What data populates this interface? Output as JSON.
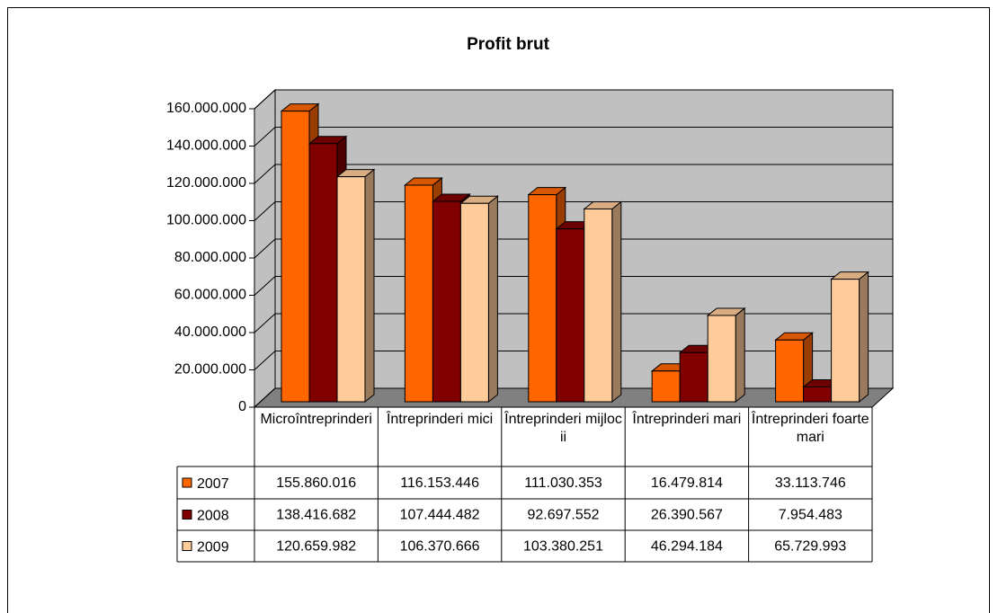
{
  "chart_data": {
    "type": "bar3d",
    "title": "Profit brut",
    "categories": [
      "Microîntreprinderi",
      "Întreprinderi mici",
      "Întreprinderi mijlocii",
      "Întreprinderi mari",
      "Întreprinderi foarte mari"
    ],
    "series": [
      {
        "name": "2007",
        "color": "#ff6600",
        "values": [
          155860016,
          116153446,
          111030353,
          16479814,
          33113746
        ],
        "value_labels": [
          "155.860.016",
          "116.153.446",
          "111.030.353",
          "16.479.814",
          "33.113.746"
        ]
      },
      {
        "name": "2008",
        "color": "#800000",
        "values": [
          138416682,
          107444482,
          92697552,
          26390567,
          7954483
        ],
        "value_labels": [
          "138.416.682",
          "107.444.482",
          "92.697.552",
          "26.390.567",
          "7.954.483"
        ]
      },
      {
        "name": "2009",
        "color": "#ffcc99",
        "values": [
          120659982,
          106370666,
          103380251,
          46294184,
          65729993
        ],
        "value_labels": [
          "120.659.982",
          "106.370.666",
          "103.380.251",
          "46.294.184",
          "65.729.993"
        ]
      }
    ],
    "ylim": [
      0,
      160000000
    ],
    "yticks": [
      0,
      {
        "value": 20000000,
        "label": "20.000.000"
      },
      {
        "value": 40000000,
        "label": "40.000.000"
      },
      {
        "value": 60000000,
        "label": "60.000.000"
      },
      {
        "value": 80000000,
        "label": "80.000.000"
      },
      {
        "value": 100000000,
        "label": "100.000.000"
      },
      {
        "value": 120000000,
        "label": "120.000.000"
      },
      {
        "value": 140000000,
        "label": "140.000.000"
      },
      {
        "value": 160000000,
        "label": "160.000.000"
      }
    ],
    "grid": true,
    "legend": "table"
  }
}
